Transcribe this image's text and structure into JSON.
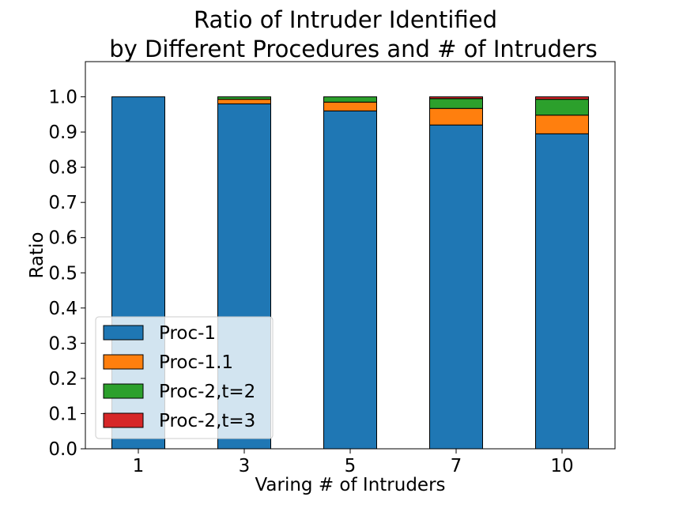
{
  "chart_data": {
    "type": "bar",
    "stacked": true,
    "title": "Ratio of Intruder Identified\nby Different Procedures and # of Intruders",
    "xlabel": "Varing # of Intruders",
    "ylabel": "Ratio",
    "categories": [
      "1",
      "3",
      "5",
      "7",
      "10"
    ],
    "ylim": [
      0.0,
      1.1
    ],
    "yticks": [
      "0.0",
      "0.1",
      "0.2",
      "0.3",
      "0.4",
      "0.5",
      "0.6",
      "0.7",
      "0.8",
      "0.9",
      "1.0"
    ],
    "grid": false,
    "legend_position": "lower-left",
    "series": [
      {
        "name": "Proc-1",
        "color": "#1f77b4",
        "values": [
          1.0,
          0.98,
          0.96,
          0.92,
          0.895
        ]
      },
      {
        "name": "Proc-1.1",
        "color": "#ff7f0e",
        "values": [
          0.0,
          0.013,
          0.025,
          0.047,
          0.053
        ]
      },
      {
        "name": "Proc-2,t=2",
        "color": "#2ca02c",
        "values": [
          0.0,
          0.007,
          0.015,
          0.028,
          0.045
        ]
      },
      {
        "name": "Proc-2,t=3",
        "color": "#d62728",
        "values": [
          0.0,
          0.0,
          0.0,
          0.005,
          0.007
        ]
      }
    ]
  }
}
